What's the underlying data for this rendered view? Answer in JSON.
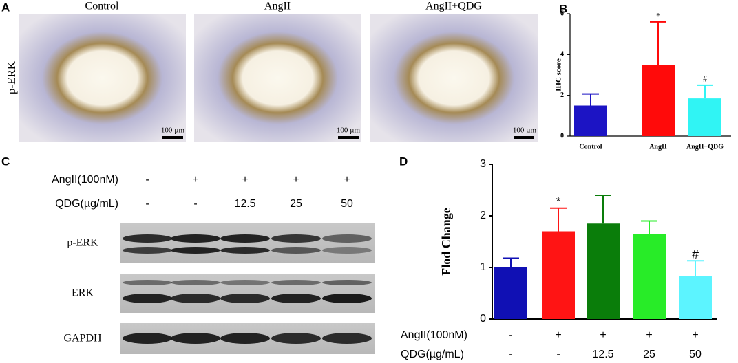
{
  "panel_labels": [
    "A",
    "B",
    "C",
    "D"
  ],
  "ihc": {
    "row_label": "p-ERK",
    "columns": [
      "Control",
      "AngII",
      "AngII+QDG"
    ],
    "scale_bar": "100 µm"
  },
  "blot": {
    "conditions": [
      {
        "label": "AngII(100nM)",
        "values": [
          "-",
          "+",
          "+",
          "+",
          "+"
        ]
      },
      {
        "label": "QDG(µg/mL)",
        "values": [
          "-",
          "-",
          "12.5",
          "25",
          "50"
        ]
      }
    ],
    "bands": [
      "p-ERK",
      "ERK",
      "GAPDH"
    ]
  },
  "chart_data": [
    {
      "type": "bar",
      "ylabel": "IHC score",
      "categories": [
        "Control",
        "AngII",
        "AngII+QDG"
      ],
      "values": [
        1.5,
        3.5,
        1.85
      ],
      "errors": [
        0.57,
        2.1,
        0.65
      ],
      "colors": [
        "#1c14c4",
        "#ff0a0a",
        "#30f4f4"
      ],
      "annotations": [
        null,
        "*",
        "#"
      ],
      "ylim": [
        0,
        6
      ],
      "yticks": [
        0,
        2,
        4,
        6
      ]
    },
    {
      "type": "bar",
      "ylabel": "Flod Change",
      "conditions": [
        {
          "label": "AngII(100nM)",
          "values": [
            "-",
            "+",
            "+",
            "+",
            "+"
          ]
        },
        {
          "label": "QDG(µg/mL)",
          "values": [
            "-",
            "-",
            "12.5",
            "25",
            "50"
          ]
        }
      ],
      "values": [
        1.0,
        1.7,
        1.85,
        1.65,
        0.83
      ],
      "errors": [
        0.18,
        0.45,
        0.55,
        0.25,
        0.3
      ],
      "colors": [
        "#1010b4",
        "#ff1414",
        "#0a7d0a",
        "#28ec28",
        "#5cf4ff"
      ],
      "annotations": [
        null,
        "*",
        null,
        null,
        "#"
      ],
      "ylim": [
        0,
        3
      ],
      "yticks": [
        0,
        1,
        2,
        3
      ]
    }
  ]
}
